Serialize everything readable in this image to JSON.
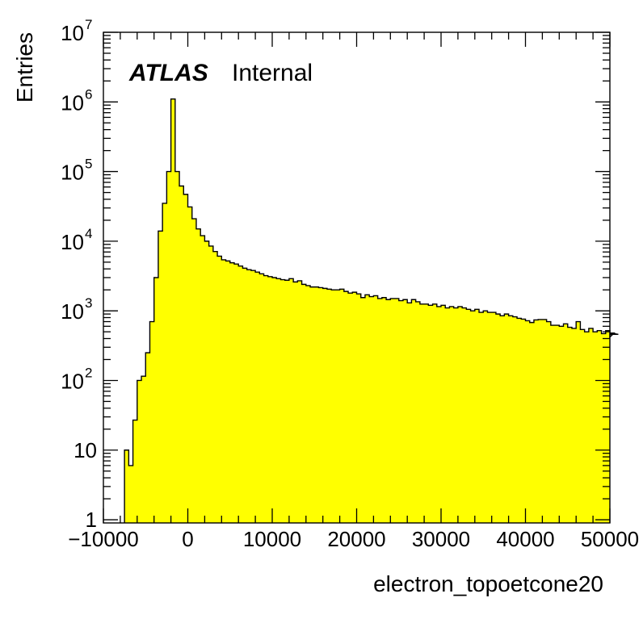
{
  "chart_data": {
    "type": "bar",
    "subtype": "histogram",
    "xlabel": "electron_topoetcone20",
    "ylabel": "Entries",
    "xlim": [
      -10000,
      50000
    ],
    "ylim": [
      0.9,
      10000000
    ],
    "yscale": "log",
    "grid": false,
    "fill_color": "#ffff00",
    "line_color": "#000000",
    "bin_width": 500,
    "first_bin_low": -7500,
    "annotations": [
      {
        "text": "ATLAS",
        "style": "bold-italic"
      },
      {
        "text": "Internal",
        "style": "normal"
      }
    ],
    "x_ticks": [
      {
        "value": -10000,
        "label": "−10000"
      },
      {
        "value": 0,
        "label": "0"
      },
      {
        "value": 10000,
        "label": "10000"
      },
      {
        "value": 20000,
        "label": "20000"
      },
      {
        "value": 30000,
        "label": "30000"
      },
      {
        "value": 40000,
        "label": "40000"
      },
      {
        "value": 50000,
        "label": "50000"
      }
    ],
    "y_ticks": [
      {
        "value": 1,
        "base": "1",
        "exp": ""
      },
      {
        "value": 10,
        "base": "10",
        "exp": ""
      },
      {
        "value": 100,
        "base": "10",
        "exp": "2"
      },
      {
        "value": 1000,
        "base": "10",
        "exp": "3"
      },
      {
        "value": 10000,
        "base": "10",
        "exp": "4"
      },
      {
        "value": 100000,
        "base": "10",
        "exp": "5"
      },
      {
        "value": 1000000,
        "base": "10",
        "exp": "6"
      },
      {
        "value": 10000000,
        "base": "10",
        "exp": "7"
      }
    ],
    "values": [
      10,
      6,
      27,
      100,
      115,
      250,
      700,
      3000,
      14000,
      35000,
      100000,
      1100000,
      100000,
      62000,
      47000,
      31000,
      21000,
      15000,
      12000,
      10000,
      8500,
      7100,
      6100,
      5400,
      5200,
      4900,
      4700,
      4400,
      4100,
      3900,
      3800,
      3600,
      3400,
      3200,
      3100,
      3000,
      2900,
      2800,
      2750,
      2900,
      2600,
      2700,
      2400,
      2300,
      2200,
      2200,
      2150,
      2100,
      2050,
      2000,
      2000,
      2050,
      1900,
      1800,
      1850,
      1750,
      1550,
      1700,
      1600,
      1650,
      1500,
      1550,
      1450,
      1500,
      1500,
      1400,
      1450,
      1300,
      1450,
      1350,
      1250,
      1250,
      1200,
      1250,
      1150,
      1200,
      1100,
      1150,
      1100,
      1150,
      1100,
      1050,
      1000,
      1050,
      950,
      1000,
      950,
      950,
      900,
      850,
      900,
      850,
      820,
      780,
      760,
      720,
      680,
      740,
      750,
      750,
      700,
      620,
      620,
      600,
      650,
      580,
      560,
      700,
      540,
      500,
      560,
      500,
      520,
      470,
      520,
      420,
      480,
      460
    ]
  }
}
